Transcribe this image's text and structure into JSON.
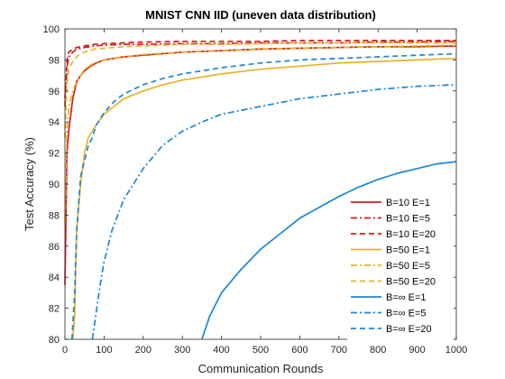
{
  "chart_data": {
    "type": "line",
    "title": "MNIST CNN IID (uneven data distribution)",
    "xlabel": "Communication Rounds",
    "ylabel": "Test Accuracy (%)",
    "xlim": [
      0,
      1000
    ],
    "ylim": [
      80,
      100
    ],
    "xticks": [
      "0",
      "100",
      "200",
      "300",
      "400",
      "500",
      "600",
      "700",
      "800",
      "900",
      "1000"
    ],
    "yticks": [
      "80",
      "82",
      "84",
      "86",
      "88",
      "90",
      "92",
      "94",
      "96",
      "98",
      "100"
    ],
    "grid": false,
    "legend_position": "bottom-right",
    "series": [
      {
        "name": "B=10 E=1",
        "color": "#d81b1b",
        "dash": "solid",
        "x": [
          0,
          5,
          10,
          15,
          20,
          30,
          40,
          50,
          60,
          80,
          100,
          150,
          200,
          300,
          400,
          500,
          600,
          700,
          800,
          900,
          1000
        ],
        "y": [
          83.5,
          92.0,
          93.5,
          94.5,
          95.5,
          96.6,
          97.0,
          97.3,
          97.5,
          97.8,
          98.0,
          98.2,
          98.3,
          98.5,
          98.6,
          98.7,
          98.75,
          98.8,
          98.85,
          98.85,
          98.9
        ]
      },
      {
        "name": "B=10 E=5",
        "color": "#d81b1b",
        "dash": "dashdot",
        "x": [
          0,
          5,
          10,
          20,
          30,
          50,
          75,
          100,
          150,
          200,
          300,
          400,
          500,
          600,
          700,
          800,
          900,
          1000
        ],
        "y": [
          95.0,
          97.5,
          98.2,
          98.5,
          98.7,
          98.8,
          98.9,
          98.95,
          99.0,
          99.0,
          99.05,
          99.05,
          99.1,
          99.1,
          99.1,
          99.15,
          99.15,
          99.2
        ]
      },
      {
        "name": "B=10 E=20",
        "color": "#d81b1b",
        "dash": "dashed",
        "x": [
          0,
          5,
          10,
          20,
          30,
          50,
          75,
          100,
          150,
          200,
          300,
          400,
          500,
          600,
          700,
          800,
          900,
          1000
        ],
        "y": [
          95.5,
          98.0,
          98.5,
          98.7,
          98.8,
          98.9,
          99.0,
          99.05,
          99.1,
          99.15,
          99.2,
          99.2,
          99.2,
          99.25,
          99.25,
          99.25,
          99.25,
          99.25
        ]
      },
      {
        "name": "B=50 E=1",
        "color": "#e8b325",
        "dash": "solid",
        "x": [
          20,
          25,
          30,
          40,
          50,
          60,
          80,
          100,
          125,
          150,
          200,
          250,
          300,
          400,
          500,
          600,
          700,
          800,
          900,
          1000
        ],
        "y": [
          80.0,
          81.5,
          87.0,
          90.0,
          92.0,
          93.0,
          93.8,
          94.5,
          95.0,
          95.5,
          96.0,
          96.4,
          96.7,
          97.1,
          97.4,
          97.6,
          97.8,
          97.9,
          98.0,
          98.1
        ]
      },
      {
        "name": "B=50 E=5",
        "color": "#e8b325",
        "dash": "dashdot",
        "x": [
          0,
          5,
          10,
          20,
          30,
          40,
          50,
          75,
          100,
          150,
          200,
          300,
          400,
          500,
          600,
          700,
          800,
          900,
          1000
        ],
        "y": [
          87.5,
          93.5,
          95.0,
          96.0,
          96.6,
          97.0,
          97.4,
          97.8,
          98.0,
          98.2,
          98.35,
          98.5,
          98.6,
          98.7,
          98.75,
          98.8,
          98.85,
          98.9,
          98.95
        ]
      },
      {
        "name": "B=50 E=20",
        "color": "#e8b325",
        "dash": "dashed",
        "x": [
          0,
          5,
          10,
          20,
          30,
          40,
          50,
          75,
          100,
          150,
          200,
          300,
          400,
          500,
          600,
          700,
          800,
          900,
          1000
        ],
        "y": [
          93.0,
          96.5,
          97.4,
          97.9,
          98.2,
          98.4,
          98.5,
          98.7,
          98.75,
          98.85,
          98.9,
          99.0,
          99.0,
          99.05,
          99.1,
          99.1,
          99.1,
          99.1,
          99.1
        ]
      },
      {
        "name": "B=∞ E=1",
        "color": "#1b87d8",
        "dash": "solid",
        "x": [
          350,
          370,
          400,
          450,
          500,
          550,
          600,
          650,
          700,
          750,
          800,
          850,
          900,
          950,
          1000
        ],
        "y": [
          80.0,
          81.5,
          83.0,
          84.5,
          85.8,
          86.8,
          87.8,
          88.5,
          89.2,
          89.8,
          90.3,
          90.7,
          91.0,
          91.3,
          91.45
        ]
      },
      {
        "name": "B=∞ E=5",
        "color": "#1b87d8",
        "dash": "dashdot",
        "x": [
          70,
          90,
          100,
          120,
          150,
          200,
          250,
          300,
          350,
          400,
          500,
          600,
          700,
          800,
          900,
          1000
        ],
        "y": [
          80.0,
          83.5,
          85.0,
          87.0,
          89.0,
          91.0,
          92.5,
          93.4,
          94.0,
          94.5,
          95.0,
          95.5,
          95.8,
          96.1,
          96.3,
          96.4
        ]
      },
      {
        "name": "B=∞ E=20",
        "color": "#1b87d8",
        "dash": "dashed",
        "x": [
          18,
          25,
          30,
          40,
          50,
          60,
          70,
          80,
          100,
          125,
          150,
          200,
          250,
          300,
          400,
          500,
          600,
          700,
          800,
          900,
          1000
        ],
        "y": [
          80.0,
          83.0,
          87.0,
          90.5,
          91.5,
          92.5,
          93.0,
          93.8,
          94.6,
          95.3,
          95.8,
          96.4,
          96.8,
          97.1,
          97.5,
          97.8,
          98.0,
          98.1,
          98.2,
          98.3,
          98.4
        ]
      }
    ]
  }
}
